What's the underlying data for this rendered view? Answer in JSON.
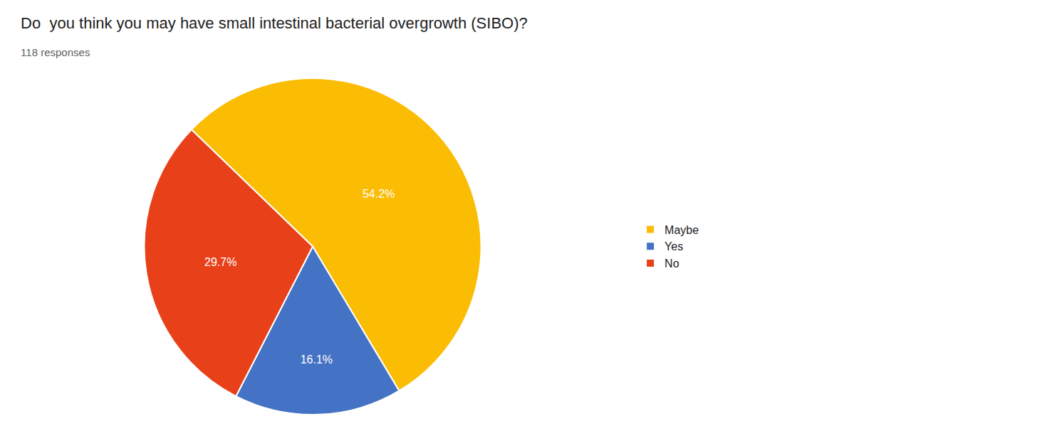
{
  "chart_data": {
    "type": "pie",
    "title": "Do  you think you may have small intestinal bacterial overgrowth (SIBO)?",
    "subtitle": "118 responses",
    "categories": [
      "Maybe",
      "Yes",
      "No"
    ],
    "values": [
      54.2,
      16.1,
      29.7
    ],
    "value_labels": [
      "54.2%",
      "16.1%",
      "29.7%"
    ],
    "colors": [
      "#FBBC04",
      "#4472C4",
      "#E8411A"
    ],
    "data_labels": true,
    "legend": "right"
  }
}
